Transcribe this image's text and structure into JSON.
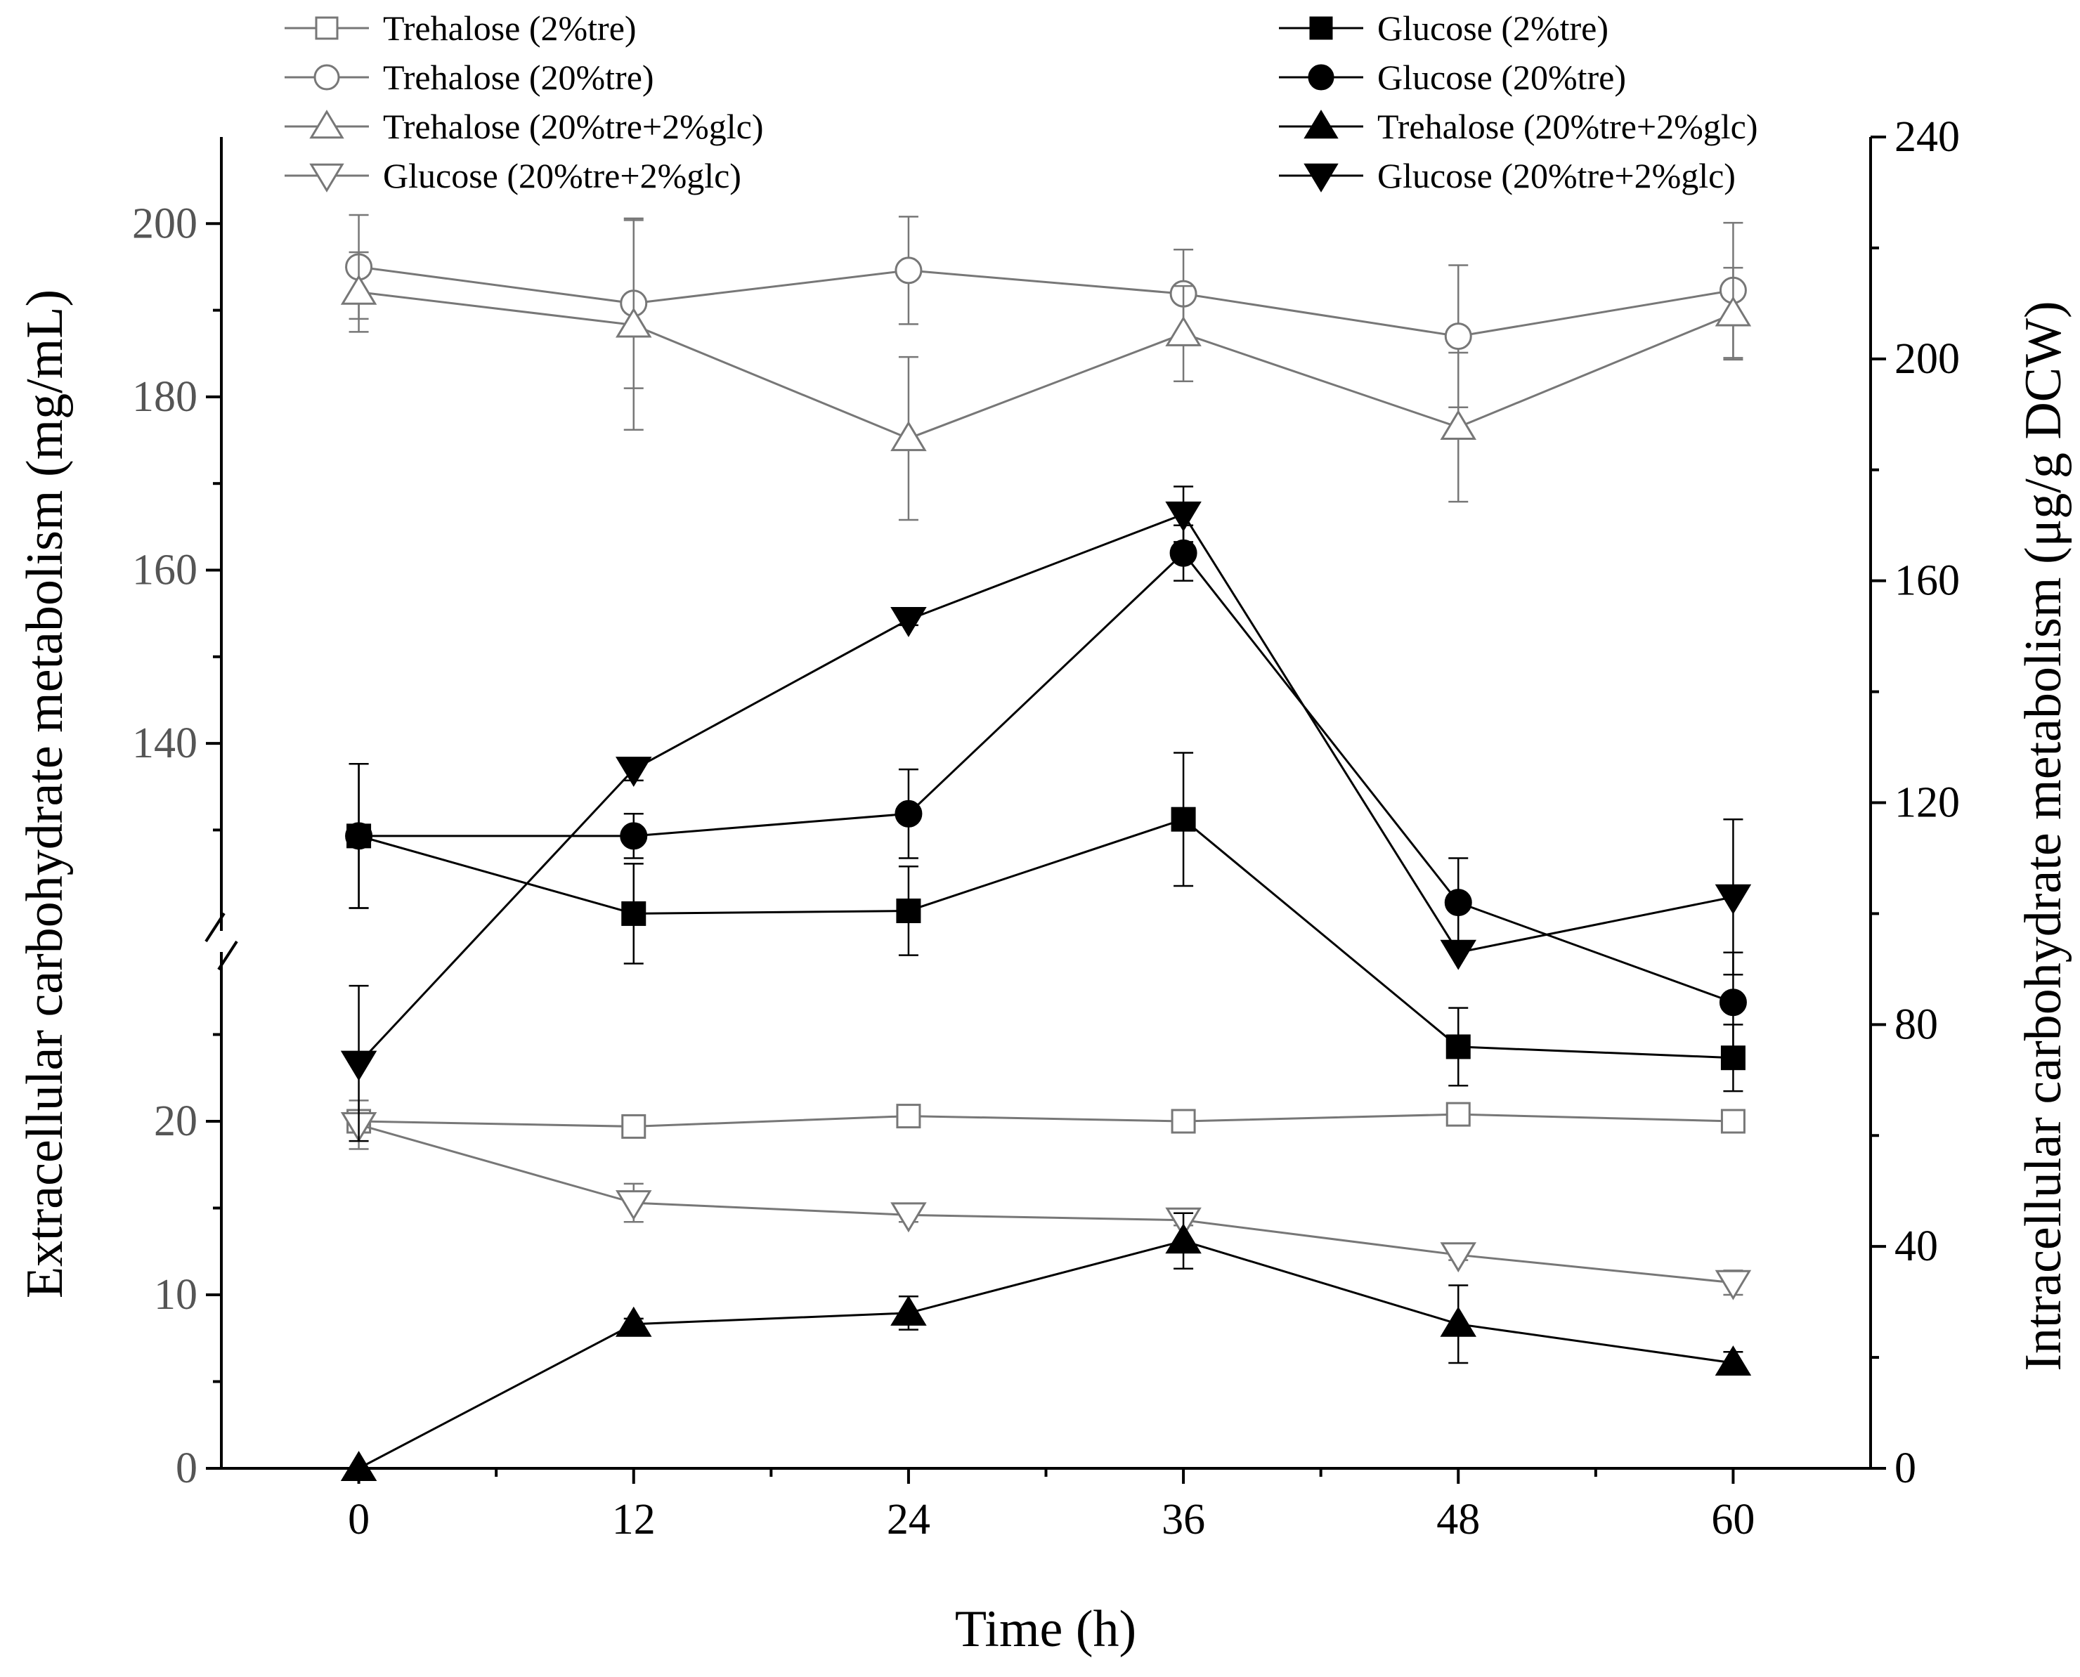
{
  "chart_data": {
    "type": "line",
    "title": "",
    "xlabel": "Time (h)",
    "ylabel_left": "Extracellular carbohydrate metabolism (mg/mL)",
    "ylabel_right": "Intracellular carbohydrate metabolism (μg/g DCW)",
    "x": [
      0,
      12,
      24,
      36,
      48,
      60
    ],
    "x_ticks": [
      "0",
      "12",
      "24",
      "36",
      "48",
      "60"
    ],
    "xlim": [
      -6,
      66
    ],
    "left_axis": {
      "broken": true,
      "lower_segment": [
        0,
        30
      ],
      "upper_segment": [
        117,
        210
      ],
      "lower_ticks": [
        "0",
        "10",
        "20"
      ],
      "upper_ticks": [
        "140",
        "160",
        "180",
        "200"
      ]
    },
    "right_axis": {
      "ylim": [
        0,
        240
      ],
      "ticks": [
        "0",
        "40",
        "80",
        "120",
        "160",
        "200",
        "240"
      ]
    },
    "series": [
      {
        "name": "Trehalose (2%tre)",
        "axis": "left",
        "marker": "square",
        "filled": false,
        "color": "#777777",
        "values": [
          20.0,
          19.7,
          20.3,
          20.0,
          20.4,
          20.0
        ],
        "errors": [
          0.3,
          0.3,
          0.3,
          0.3,
          0.3,
          0.3
        ]
      },
      {
        "name": "Trehalose (20%tre)",
        "axis": "left",
        "marker": "circle",
        "filled": false,
        "color": "#777777",
        "values": [
          195,
          190.8,
          194.6,
          191.9,
          187,
          192.3
        ],
        "errors": [
          6,
          9.8,
          6.2,
          5.1,
          8.2,
          7.8
        ]
      },
      {
        "name": "Trehalose (20%tre+2%glc)",
        "axis": "left",
        "marker": "triangle-up",
        "filled": false,
        "color": "#777777",
        "values": [
          192.1,
          188.3,
          175.2,
          187.3,
          176.5,
          189.6
        ],
        "errors": [
          4.6,
          12.1,
          9.4,
          5.5,
          8.6,
          5.3
        ]
      },
      {
        "name": "Glucose (20%tre+2%glc)",
        "axis": "left",
        "marker": "triangle-down",
        "filled": false,
        "color": "#777777",
        "values": [
          19.8,
          15.3,
          14.6,
          14.3,
          12.3,
          10.7
        ],
        "errors": [
          1.4,
          1.1,
          0.4,
          0.3,
          0.3,
          0.7
        ]
      },
      {
        "name": "Glucose (2%tre)",
        "axis": "right",
        "marker": "square",
        "filled": true,
        "color": "#000000",
        "values": [
          114,
          100,
          100.5,
          117,
          76,
          74
        ],
        "errors": [
          13,
          9,
          8,
          12,
          7,
          6
        ]
      },
      {
        "name": "Glucose (20%tre)",
        "axis": "right",
        "marker": "circle",
        "filled": true,
        "color": "#000000",
        "values": [
          114,
          114,
          118,
          165,
          102,
          84
        ],
        "errors": [
          13,
          4,
          8,
          5,
          8,
          9
        ]
      },
      {
        "name": "Trehalose (20%tre+2%glc)",
        "axis": "right",
        "marker": "triangle-up",
        "filled": true,
        "color": "#000000",
        "values": [
          0,
          26,
          28,
          41,
          26,
          19
        ],
        "errors": [
          0,
          1,
          3,
          5,
          7,
          2
        ]
      },
      {
        "name": "Glucose (20%tre+2%glc)",
        "axis": "right",
        "marker": "triangle-down",
        "filled": true,
        "color": "#000000",
        "values": [
          73,
          126,
          153,
          172,
          93,
          103
        ],
        "errors": [
          14,
          2,
          1,
          5,
          0,
          14
        ]
      }
    ],
    "legend": {
      "placement": "top",
      "left_column": [
        "Trehalose (2%tre)",
        "Trehalose (20%tre)",
        "Trehalose (20%tre+2%glc)",
        "Glucose (20%tre+2%glc)"
      ],
      "right_column": [
        "Glucose (2%tre)",
        "Glucose (20%tre)",
        "Trehalose (20%tre+2%glc)",
        "Glucose (20%tre+2%glc)"
      ]
    }
  }
}
